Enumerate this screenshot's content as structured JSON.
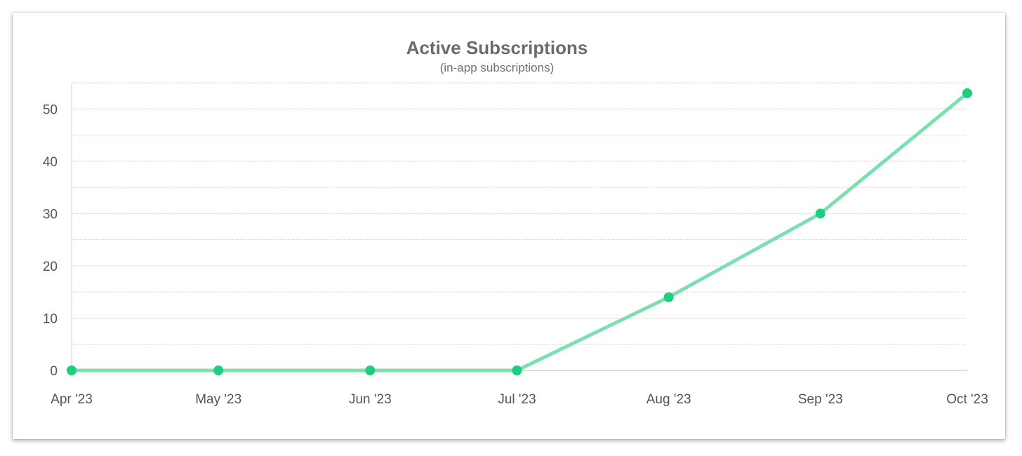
{
  "chart_data": {
    "type": "line",
    "title": "Active Subscriptions",
    "subtitle": "(in-app subscriptions)",
    "xlabel": "",
    "ylabel": "",
    "categories": [
      "Apr '23",
      "May '23",
      "Jun '23",
      "Jul '23",
      "Aug '23",
      "Sep '23",
      "Oct '23"
    ],
    "series": [
      {
        "values": [
          0,
          0,
          0,
          0,
          14,
          30,
          53
        ]
      }
    ],
    "x_positions_days": [
      0,
      30,
      61,
      91,
      122,
      153,
      183
    ],
    "ylim": [
      0,
      55
    ],
    "yticks": [
      0,
      10,
      20,
      30,
      40,
      50
    ],
    "y_minor_step": 5,
    "grid": true,
    "legend": "none",
    "colors": {
      "line": "#7ddfb0",
      "marker": "#1ccf7f",
      "grid": "#cfcfcf",
      "axis": "#d0d0d0"
    }
  }
}
